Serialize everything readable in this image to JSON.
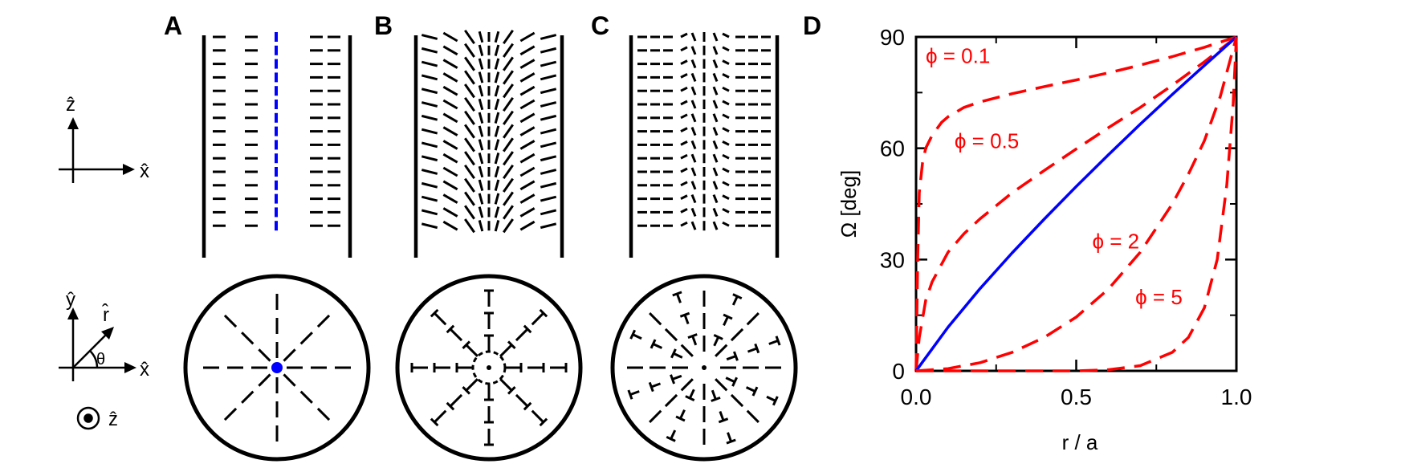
{
  "panels": {
    "a": "A",
    "b": "B",
    "c": "C",
    "d": "D"
  },
  "axes_labels": {
    "z_hat": "ẑ",
    "x_hat": "x̂",
    "y_hat": "ŷ",
    "r_hat": "r̂",
    "theta": "θ"
  },
  "colors": {
    "ink": "#000000",
    "blue": "#0000ff",
    "red": "#ff0000"
  },
  "chart_data": {
    "type": "line",
    "xlabel": "r / a",
    "ylabel": "Ω [deg]",
    "xlim": [
      0.0,
      1.0
    ],
    "ylim": [
      0,
      90
    ],
    "x_ticks": [
      "0.0",
      "0.5",
      "1.0"
    ],
    "y_ticks": [
      "0",
      "30",
      "60",
      "90"
    ],
    "series": [
      {
        "name": "ϕ = 0.1",
        "style": "dashed",
        "color": "#ff0000",
        "x": [
          0,
          0.005,
          0.01,
          0.02,
          0.03,
          0.05,
          0.08,
          0.1,
          0.15,
          0.2,
          0.3,
          0.4,
          0.5,
          0.6,
          0.7,
          0.8,
          0.9,
          1.0
        ],
        "y": [
          0,
          30,
          48,
          56,
          60,
          63.5,
          67,
          68.5,
          71,
          72.5,
          74.7,
          76.6,
          78.4,
          80.3,
          82.4,
          84.7,
          87.2,
          90
        ]
      },
      {
        "name": "ϕ = 0.5",
        "style": "dashed",
        "color": "#ff0000",
        "x": [
          0,
          0.01,
          0.03,
          0.05,
          0.1,
          0.15,
          0.2,
          0.3,
          0.4,
          0.5,
          0.6,
          0.7,
          0.8,
          0.9,
          1.0
        ],
        "y": [
          0,
          9,
          19,
          24,
          32,
          37,
          41,
          48,
          54,
          59.8,
          65.5,
          71,
          77,
          83.3,
          90
        ]
      },
      {
        "name": "",
        "style": "solid",
        "color": "#0000ff",
        "x": [
          0,
          0.1,
          0.2,
          0.3,
          0.4,
          0.5,
          0.6,
          0.7,
          0.8,
          0.9,
          1.0
        ],
        "y": [
          0,
          11.8,
          22.2,
          31.8,
          40.9,
          49.7,
          58.2,
          66.5,
          74.5,
          82.3,
          90
        ]
      },
      {
        "name": "ϕ = 2",
        "style": "dashed",
        "color": "#ff0000",
        "x": [
          0,
          0.1,
          0.2,
          0.3,
          0.4,
          0.5,
          0.6,
          0.7,
          0.8,
          0.85,
          0.9,
          0.95,
          1.0
        ],
        "y": [
          0,
          0.6,
          2.2,
          5,
          9,
          14.5,
          22,
          32,
          45,
          53,
          62,
          74,
          90
        ]
      },
      {
        "name": "ϕ = 5",
        "style": "dashed",
        "color": "#ff0000",
        "x": [
          0,
          0.5,
          0.6,
          0.7,
          0.8,
          0.85,
          0.9,
          0.94,
          0.97,
          0.99,
          1.0
        ],
        "y": [
          0,
          0,
          0.3,
          1.4,
          5,
          9,
          17,
          30,
          50,
          72,
          90
        ]
      }
    ],
    "annotations": [
      "ϕ = 0.1",
      "ϕ = 0.5",
      "ϕ = 2",
      "ϕ = 5"
    ],
    "grid": false,
    "legend": "inline"
  }
}
